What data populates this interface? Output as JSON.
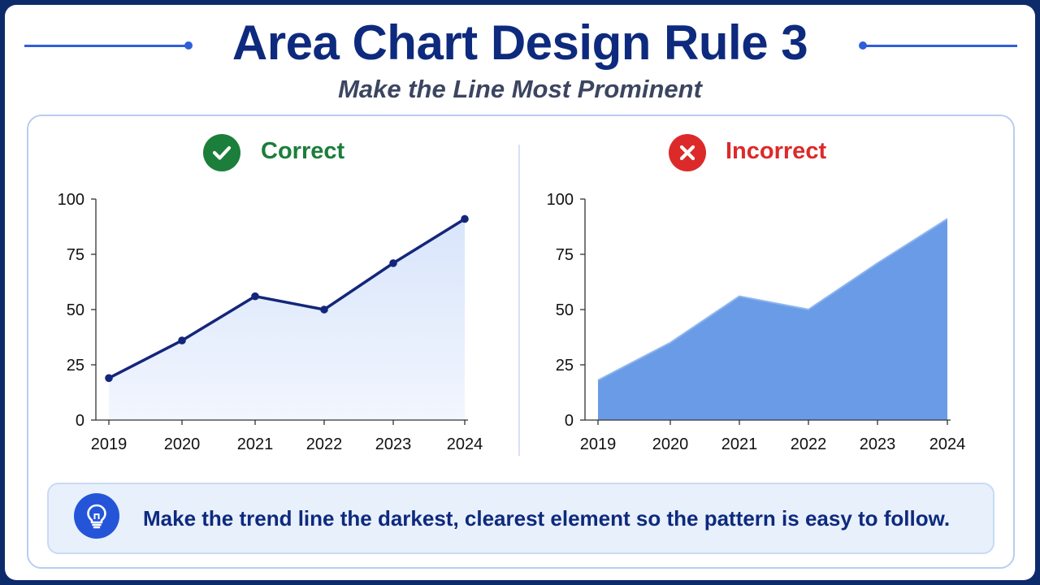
{
  "header": {
    "title": "Area Chart Design Rule 3",
    "subtitle": "Make the Line Most Prominent"
  },
  "panels": {
    "correct": {
      "label": "Correct",
      "icon": "check-circle-icon",
      "color": "#1b7e3a"
    },
    "incorrect": {
      "label": "Incorrect",
      "icon": "x-circle-icon",
      "color": "#dc2a2a"
    }
  },
  "tip": {
    "icon": "lightbulb-icon",
    "text": "Make the trend line the darkest, clearest element so the pattern is easy to follow."
  },
  "colors": {
    "title": "#0e2a7e",
    "line_dark": "#14267a",
    "area_light": "#d8e5fb",
    "area_solid": "#6a9be6"
  },
  "chart_data": [
    {
      "type": "area",
      "categories": [
        "2019",
        "2020",
        "2021",
        "2022",
        "2023",
        "2024"
      ],
      "values": [
        19,
        36,
        56,
        50,
        71,
        91
      ],
      "ylim": [
        0,
        100
      ],
      "yticks": [
        "0",
        "25",
        "50",
        "75",
        "100"
      ],
      "style": "dark line with markers over light fill"
    },
    {
      "type": "area",
      "categories": [
        "2019",
        "2020",
        "2021",
        "2022",
        "2023",
        "2024"
      ],
      "values": [
        18,
        35,
        56,
        50,
        71,
        91
      ],
      "ylim": [
        0,
        100
      ],
      "yticks": [
        "0",
        "25",
        "50",
        "75",
        "100"
      ],
      "style": "solid fill, line not emphasized"
    }
  ]
}
